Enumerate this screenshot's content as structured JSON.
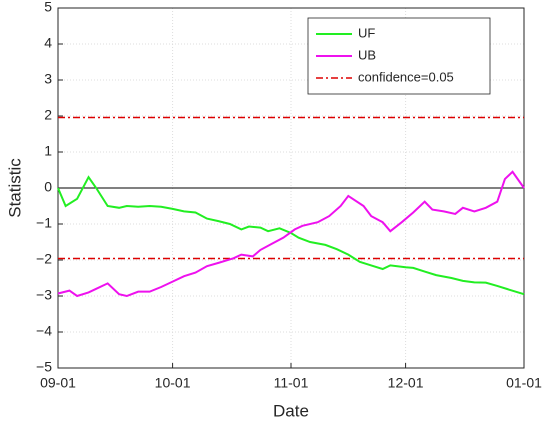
{
  "chart_data": {
    "type": "line",
    "xlabel": "Date",
    "ylabel": "Statistic",
    "xlim": [
      0,
      122
    ],
    "xticks": [
      {
        "value": 0,
        "label": "09-01"
      },
      {
        "value": 30,
        "label": "10-01"
      },
      {
        "value": 61,
        "label": "11-01"
      },
      {
        "value": 91,
        "label": "12-01"
      },
      {
        "value": 122,
        "label": "01-01"
      }
    ],
    "ylim": [
      -5,
      5
    ],
    "yticks": [
      {
        "value": -5,
        "label": "−5"
      },
      {
        "value": -4,
        "label": "−4"
      },
      {
        "value": -3,
        "label": "−3"
      },
      {
        "value": -2,
        "label": "−2"
      },
      {
        "value": -1,
        "label": "−1"
      },
      0,
      1,
      2,
      3,
      4,
      5
    ],
    "grid": true,
    "legend": "upper right",
    "baseline": {
      "value": 0,
      "color": "#000000"
    },
    "series": [
      {
        "name": "UF",
        "color": "#22ee22",
        "x": [
          0,
          2,
          5,
          8,
          10,
          13,
          16,
          18,
          21,
          24,
          27,
          30,
          33,
          36,
          39,
          42,
          45,
          48,
          50,
          53,
          55,
          58,
          61,
          63,
          66,
          70,
          73,
          76,
          79,
          82,
          85,
          87,
          91,
          93,
          96,
          99,
          103,
          106,
          109,
          112,
          115,
          118,
          122
        ],
        "values": [
          0,
          -0.5,
          -0.3,
          0.3,
          0,
          -0.5,
          -0.55,
          -0.5,
          -0.52,
          -0.5,
          -0.52,
          -0.58,
          -0.65,
          -0.68,
          -0.85,
          -0.92,
          -1.0,
          -1.15,
          -1.07,
          -1.1,
          -1.2,
          -1.12,
          -1.25,
          -1.38,
          -1.5,
          -1.58,
          -1.7,
          -1.85,
          -2.05,
          -2.15,
          -2.25,
          -2.15,
          -2.2,
          -2.22,
          -2.32,
          -2.42,
          -2.5,
          -2.58,
          -2.62,
          -2.63,
          -2.72,
          -2.82,
          -2.95
        ]
      },
      {
        "name": "UB",
        "color": "#ee11ee",
        "x": [
          0,
          3,
          5,
          8,
          10,
          13,
          16,
          18,
          21,
          24,
          27,
          30,
          33,
          36,
          39,
          42,
          46,
          48,
          51,
          53,
          56,
          59,
          62,
          64,
          68,
          71,
          74,
          76,
          80,
          82,
          85,
          87,
          90,
          93,
          96,
          98,
          101,
          104,
          106,
          109,
          112,
          115,
          117,
          119,
          122
        ],
        "values": [
          -2.93,
          -2.85,
          -3.0,
          -2.9,
          -2.8,
          -2.65,
          -2.95,
          -3.0,
          -2.88,
          -2.88,
          -2.75,
          -2.6,
          -2.45,
          -2.35,
          -2.17,
          -2.08,
          -1.95,
          -1.85,
          -1.9,
          -1.72,
          -1.55,
          -1.38,
          -1.15,
          -1.05,
          -0.95,
          -0.78,
          -0.5,
          -0.22,
          -0.5,
          -0.78,
          -0.95,
          -1.2,
          -0.95,
          -0.68,
          -0.38,
          -0.6,
          -0.65,
          -0.72,
          -0.55,
          -0.65,
          -0.55,
          -0.38,
          0.25,
          0.45,
          0
        ]
      }
    ],
    "reference_line": {
      "name": "confidence=0.05",
      "color": "#dd0000",
      "values": [
        1.96,
        -1.96
      ]
    }
  }
}
